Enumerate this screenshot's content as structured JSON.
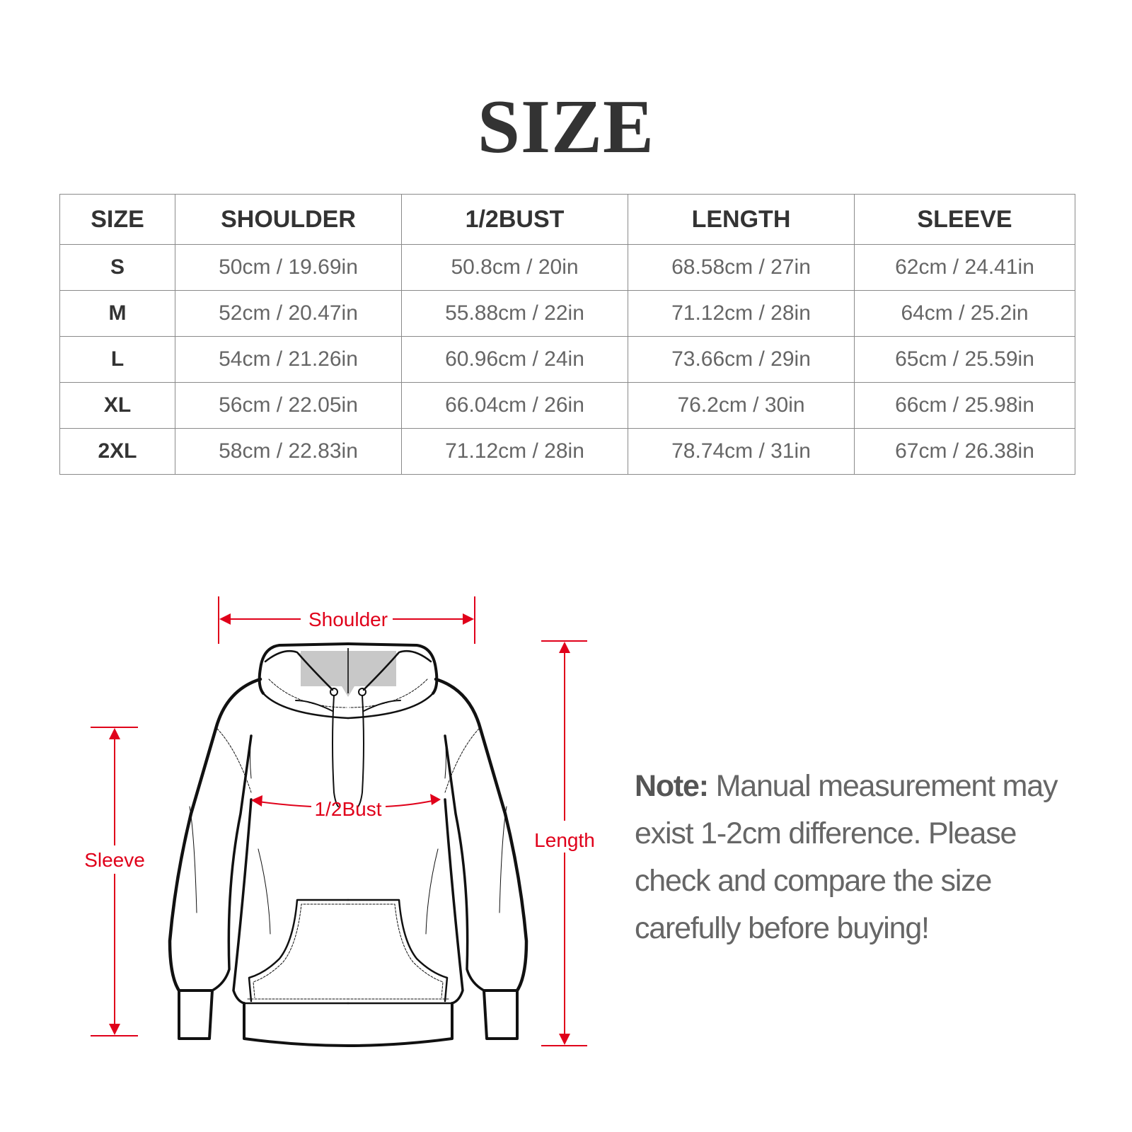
{
  "title": "SIZE",
  "table": {
    "headers": [
      "SIZE",
      "SHOULDER",
      "1/2BUST",
      "LENGTH",
      "SLEEVE"
    ],
    "rows": [
      [
        "S",
        "50cm / 19.69in",
        "50.8cm / 20in",
        "68.58cm / 27in",
        "62cm / 24.41in"
      ],
      [
        "M",
        "52cm / 20.47in",
        "55.88cm / 22in",
        "71.12cm / 28in",
        "64cm / 25.2in"
      ],
      [
        "L",
        "54cm / 21.26in",
        "60.96cm / 24in",
        "73.66cm / 29in",
        "65cm / 25.59in"
      ],
      [
        "XL",
        "56cm / 22.05in",
        "66.04cm / 26in",
        "76.2cm / 30in",
        "66cm / 25.98in"
      ],
      [
        "2XL",
        "58cm / 22.83in",
        "71.12cm / 28in",
        "78.74cm / 31in",
        "67cm / 26.38in"
      ]
    ]
  },
  "diagram": {
    "shoulder": "Shoulder",
    "bust": "1/2Bust",
    "length": "Length",
    "sleeve": "Sleeve",
    "accent_color": "#e0001a"
  },
  "note": {
    "label": "Note:",
    "text": " Manual measurement may exist 1-2cm difference. Please check and compare the size carefully before buying!"
  }
}
